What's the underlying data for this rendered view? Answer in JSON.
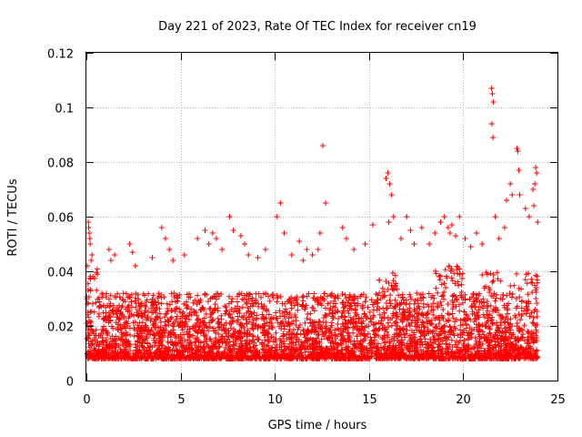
{
  "chart_data": {
    "type": "scatter",
    "title": "Day 221 of 2023, Rate Of TEC Index for receiver cn19",
    "xlabel": "GPS time / hours",
    "ylabel": "ROTI / TECUs",
    "xlim": [
      0,
      25
    ],
    "ylim": [
      0,
      0.12
    ],
    "xticks": [
      "0",
      "5",
      "10",
      "15",
      "20",
      "25"
    ],
    "xtick_values": [
      0,
      5,
      10,
      15,
      20,
      25
    ],
    "yticks": [
      "0",
      "0.02",
      "0.04",
      "0.06",
      "0.08",
      "0.1",
      "0.12"
    ],
    "ytick_values": [
      0,
      0.02,
      0.04,
      0.06,
      0.08,
      0.1,
      0.12
    ],
    "grid": true,
    "marker": "plus",
    "color": "#ff0000",
    "series": [
      {
        "x": [
          0.1,
          0.12,
          0.15,
          0.2,
          0.25,
          0.3,
          0.05,
          0.35,
          0.18,
          1.2,
          1.3,
          1.5,
          2.3,
          2.45,
          2.6,
          3.5,
          4.0,
          4.2,
          4.4,
          4.6,
          5.2,
          5.9,
          6.3,
          6.5,
          6.7,
          6.9,
          7.2,
          7.6,
          7.8,
          8.2,
          8.4,
          8.6,
          9.1,
          9.5,
          10.1,
          10.3,
          10.5,
          10.9,
          11.3,
          11.5,
          11.7,
          12.0,
          12.4,
          12.55,
          12.7,
          12.3,
          13.6,
          13.8,
          14.2,
          14.8,
          15.2,
          15.9,
          16.0,
          16.1,
          16.2,
          16.3,
          16.05,
          16.7,
          17.0,
          17.2,
          17.4,
          17.8,
          18.2,
          18.5,
          18.8,
          19.0,
          19.2,
          19.3,
          19.4,
          19.6,
          19.8,
          20.1,
          20.4,
          20.7,
          21.0,
          21.5,
          21.55,
          21.6,
          21.52,
          21.58,
          21.7,
          21.9,
          22.2,
          22.3,
          22.5,
          22.6,
          22.85,
          22.9,
          22.95,
          23.0,
          23.3,
          23.5,
          23.7,
          23.8,
          23.9,
          23.85,
          23.75,
          23.95
        ],
        "y": [
          0.058,
          0.056,
          0.054,
          0.05,
          0.044,
          0.046,
          0.042,
          0.038,
          0.052,
          0.048,
          0.044,
          0.046,
          0.05,
          0.047,
          0.042,
          0.045,
          0.056,
          0.052,
          0.048,
          0.044,
          0.046,
          0.052,
          0.055,
          0.05,
          0.054,
          0.052,
          0.048,
          0.06,
          0.055,
          0.053,
          0.05,
          0.046,
          0.045,
          0.048,
          0.06,
          0.065,
          0.054,
          0.046,
          0.051,
          0.044,
          0.048,
          0.046,
          0.054,
          0.086,
          0.065,
          0.048,
          0.056,
          0.052,
          0.048,
          0.05,
          0.057,
          0.074,
          0.076,
          0.072,
          0.068,
          0.06,
          0.058,
          0.052,
          0.06,
          0.055,
          0.05,
          0.056,
          0.05,
          0.054,
          0.058,
          0.06,
          0.056,
          0.054,
          0.057,
          0.053,
          0.06,
          0.052,
          0.049,
          0.054,
          0.05,
          0.107,
          0.105,
          0.102,
          0.094,
          0.089,
          0.06,
          0.052,
          0.056,
          0.066,
          0.072,
          0.068,
          0.085,
          0.084,
          0.077,
          0.068,
          0.063,
          0.06,
          0.07,
          0.072,
          0.076,
          0.078,
          0.064,
          0.058
        ]
      }
    ]
  }
}
